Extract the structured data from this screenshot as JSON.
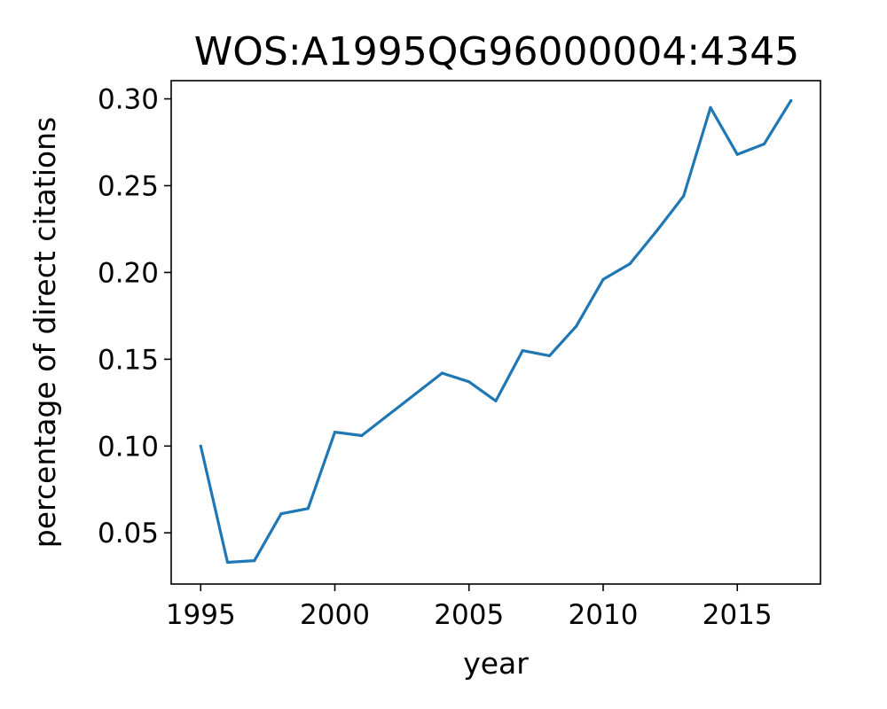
{
  "chart_data": {
    "type": "line",
    "title": "WOS:A1995QG96000004:4345",
    "xlabel": "year",
    "ylabel": "percentage of direct citations",
    "xlim": [
      1993.9,
      2018.1
    ],
    "ylim": [
      0.0205,
      0.3105
    ],
    "xticks": [
      1995,
      2000,
      2005,
      2010,
      2015
    ],
    "xtick_labels": [
      "1995",
      "2000",
      "2005",
      "2010",
      "2015"
    ],
    "yticks": [
      0.05,
      0.1,
      0.15,
      0.2,
      0.25,
      0.3
    ],
    "ytick_labels": [
      "0.05",
      "0.10",
      "0.15",
      "0.20",
      "0.25",
      "0.30"
    ],
    "grid": false,
    "legend": "none",
    "series": [
      {
        "color": "#1f77b4",
        "x": [
          1995,
          1996,
          1997,
          1998,
          1999,
          2000,
          2001,
          2002,
          2003,
          2004,
          2005,
          2006,
          2007,
          2008,
          2009,
          2010,
          2011,
          2012,
          2013,
          2014,
          2015,
          2016,
          2017
        ],
        "y": [
          0.1,
          0.033,
          0.034,
          0.061,
          0.064,
          0.108,
          0.106,
          0.118,
          0.13,
          0.142,
          0.137,
          0.126,
          0.155,
          0.152,
          0.169,
          0.196,
          0.205,
          0.224,
          0.244,
          0.295,
          0.268,
          0.274,
          0.299
        ]
      }
    ]
  }
}
